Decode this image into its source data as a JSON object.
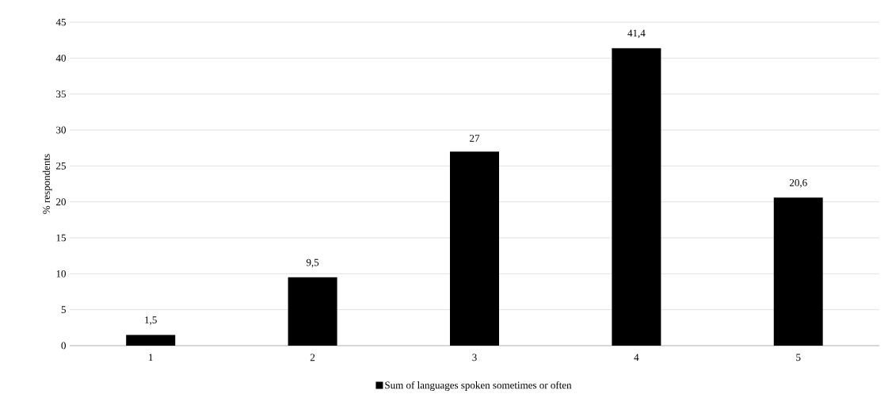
{
  "chart_data": {
    "type": "bar",
    "ylabel": "% respondents",
    "categories": [
      "1",
      "2",
      "3",
      "4",
      "5"
    ],
    "series": [
      {
        "name": "Sum of languages spoken sometimes or often",
        "color": "#000000",
        "values": [
          1.5,
          9.5,
          27,
          41.4,
          20.6
        ],
        "value_labels": [
          "1,5",
          "9,5",
          "27",
          "41,4",
          "20,6"
        ]
      }
    ],
    "ylim": [
      0,
      45
    ],
    "yticks": [
      0,
      5,
      10,
      15,
      20,
      25,
      30,
      35,
      40,
      45
    ],
    "grid": "y",
    "legend": "bottom"
  }
}
